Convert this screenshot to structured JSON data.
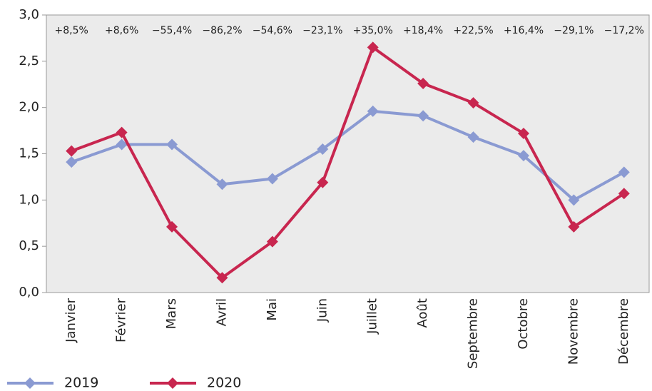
{
  "chart_data": {
    "type": "line",
    "categories": [
      "Janvier",
      "Février",
      "Mars",
      "Avril",
      "Mai",
      "Juin",
      "Juillet",
      "Août",
      "Septembre",
      "Octobre",
      "Novembre",
      "Décembre"
    ],
    "annotations": [
      "+8,5%",
      "+8,6%",
      "−55,4%",
      "−86,2%",
      "−54,6%",
      "−23,1%",
      "+35,0%",
      "+18,4%",
      "+22,5%",
      "+16,4%",
      "−29,1%",
      "−17,2%"
    ],
    "series": [
      {
        "name": "2019",
        "color": "#8a9ad2",
        "values": [
          1.41,
          1.6,
          1.6,
          1.17,
          1.23,
          1.55,
          1.96,
          1.91,
          1.68,
          1.48,
          1.0,
          1.3
        ]
      },
      {
        "name": "2020",
        "color": "#c8264f",
        "values": [
          1.53,
          1.73,
          0.71,
          0.16,
          0.55,
          1.19,
          2.65,
          2.26,
          2.05,
          1.72,
          0.71,
          1.07
        ]
      }
    ],
    "ylim": [
      0,
      3
    ],
    "yticks": [
      {
        "value": 0,
        "label": "0,0"
      },
      {
        "value": 0.5,
        "label": "0,5"
      },
      {
        "value": 1,
        "label": "1,0"
      },
      {
        "value": 1.5,
        "label": "1,5"
      },
      {
        "value": 2,
        "label": "2,0"
      },
      {
        "value": 2.5,
        "label": "2,5"
      },
      {
        "value": 3,
        "label": "3,0"
      }
    ],
    "legend": "bottom-left"
  }
}
